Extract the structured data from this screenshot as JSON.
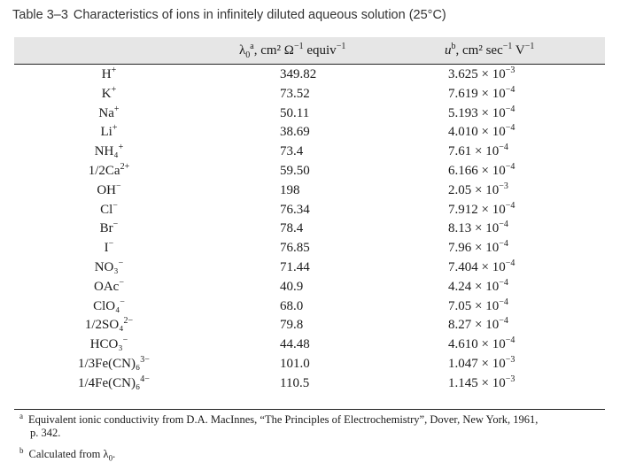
{
  "caption": {
    "label": "Table 3–3",
    "text": "Characteristics of ions in infinitely diluted aqueous solution (25°C)"
  },
  "header": {
    "lambda_symbol": "λ",
    "lambda_sub": "0",
    "lambda_mark": "a",
    "lambda_units": ", cm² Ω",
    "lambda_exp": "−1",
    "lambda_units2": " equiv",
    "lambda_exp2": "−1",
    "u_symbol": "u",
    "u_mark": "b",
    "u_units": ", cm² sec",
    "u_exp": "−1",
    "u_units2": " V",
    "u_exp2": "−1"
  },
  "rows": [
    {
      "ion": "H",
      "charge": "+",
      "lambda": "349.82",
      "mant": "3.625",
      "exp": "−3"
    },
    {
      "ion": "K",
      "charge": "+",
      "lambda": "73.52",
      "mant": "7.619",
      "exp": "−4"
    },
    {
      "ion": "Na",
      "charge": "+",
      "lambda": "50.11",
      "mant": "5.193",
      "exp": "−4"
    },
    {
      "ion": "Li",
      "charge": "+",
      "lambda": "38.69",
      "mant": "4.010",
      "exp": "−4"
    },
    {
      "ion": "NH₄",
      "charge": "+",
      "lambda": "73.4",
      "mant": "7.61",
      "exp": "−4"
    },
    {
      "ion": "1/2Ca",
      "charge": "2+",
      "lambda": "59.50",
      "mant": "6.166",
      "exp": "−4"
    },
    {
      "ion": "OH",
      "charge": "−",
      "lambda": "198",
      "mant": "2.05",
      "exp": "−3"
    },
    {
      "ion": "Cl",
      "charge": "−",
      "lambda": "76.34",
      "mant": "7.912",
      "exp": "−4"
    },
    {
      "ion": "Br",
      "charge": "−",
      "lambda": "78.4",
      "mant": "8.13",
      "exp": "−4"
    },
    {
      "ion": "I",
      "charge": "−",
      "lambda": "76.85",
      "mant": "7.96",
      "exp": "−4"
    },
    {
      "ion": "NO₃",
      "charge": "−",
      "lambda": "71.44",
      "mant": "7.404",
      "exp": "−4"
    },
    {
      "ion": "OAc",
      "charge": "−",
      "lambda": "40.9",
      "mant": "4.24",
      "exp": "−4"
    },
    {
      "ion": "ClO₄",
      "charge": "−",
      "lambda": "68.0",
      "mant": "7.05",
      "exp": "−4"
    },
    {
      "ion": "1/2SO₄",
      "charge": "2−",
      "lambda": "79.8",
      "mant": "8.27",
      "exp": "−4"
    },
    {
      "ion": "HCO₃",
      "charge": "−",
      "lambda": "44.48",
      "mant": "4.610",
      "exp": "−4"
    },
    {
      "ion": "1/3Fe(CN)₆",
      "charge": "3−",
      "lambda": "101.0",
      "mant": "1.047",
      "exp": "−3"
    },
    {
      "ion": "1/4Fe(CN)₆",
      "charge": "4−",
      "lambda": "110.5",
      "mant": "1.145",
      "exp": "−3"
    }
  ],
  "times": " × 10",
  "footnotes": {
    "a_mark": "a",
    "a_line1": "Equivalent ionic conductivity from D.A. MacInnes, “The Principles of Electrochemistry”, Dover, New York, 1961,",
    "a_line2": "p. 342.",
    "b_mark": "b",
    "b_text": "Calculated from λ",
    "b_sub": "0",
    "b_end": "."
  }
}
